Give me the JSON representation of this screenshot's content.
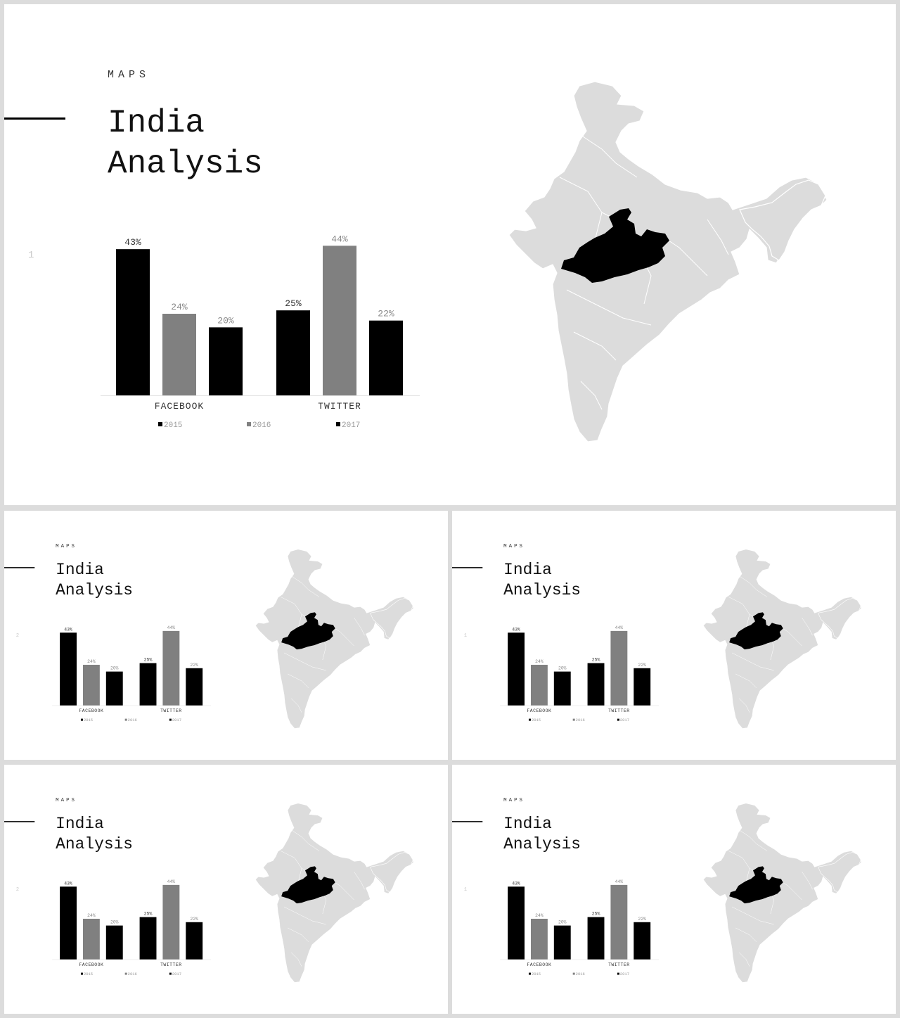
{
  "slides": [
    {
      "kicker": "MAPS",
      "title_line1": "India",
      "title_line2": "Analysis",
      "page_number": "1"
    },
    {
      "kicker": "MAPS",
      "title_line1": "India",
      "title_line2": "Analysis",
      "page_number": "2"
    },
    {
      "kicker": "MAPS",
      "title_line1": "India",
      "title_line2": "Analysis",
      "page_number": "1"
    },
    {
      "kicker": "MAPS",
      "title_line1": "India",
      "title_line2": "Analysis",
      "page_number": "2"
    },
    {
      "kicker": "MAPS",
      "title_line1": "India",
      "title_line2": "Analysis",
      "page_number": "1"
    }
  ],
  "map": {
    "highlighted_region_color": "#000000",
    "base_color": "#dcdcdc"
  },
  "chart_data": {
    "type": "bar",
    "categories": [
      "FACEBOOK",
      "TWITTER"
    ],
    "series": [
      {
        "name": "2015",
        "values": [
          43,
          25
        ],
        "color": "#000000"
      },
      {
        "name": "2016",
        "values": [
          24,
          44
        ],
        "color": "#808080"
      },
      {
        "name": "2017",
        "values": [
          20,
          22
        ],
        "color": "#000000"
      }
    ],
    "data_labels": [
      [
        "43%",
        "25%"
      ],
      [
        "24%",
        "44%"
      ],
      [
        "20%",
        "22%"
      ]
    ],
    "label_colors": [
      "#333333",
      "#8a8a8a",
      "#8a8a8a"
    ],
    "title": "",
    "xlabel": "",
    "ylabel": "",
    "ylim": [
      0,
      48
    ],
    "grid": false,
    "legend_position": "bottom"
  }
}
